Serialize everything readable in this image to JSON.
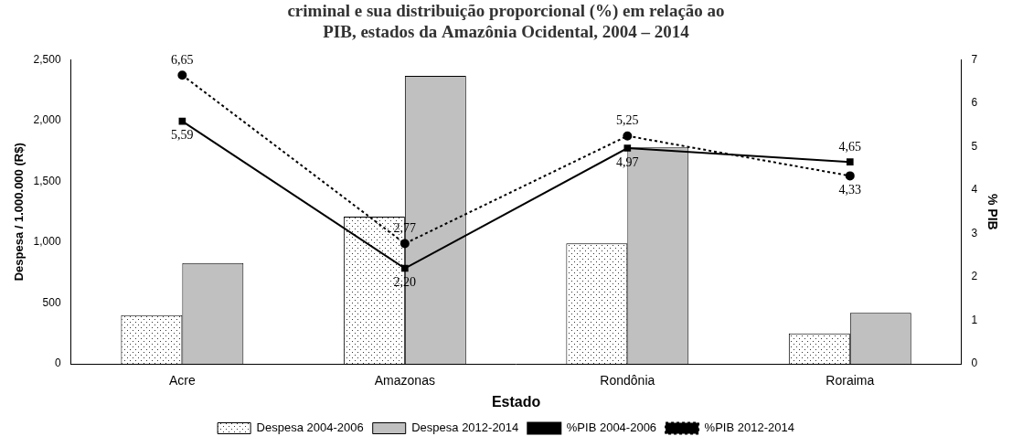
{
  "chart_data": {
    "type": "bar",
    "title": [
      "criminal e sua distribuição proporcional (%) em relação ao",
      "PIB, estados da Amazônia Ocidental, 2004 – 2014"
    ],
    "x_label": "Estado",
    "y_label": "Despesa / 1.000.000 (R$)",
    "y2_label": "% PIB",
    "categories": [
      "Acre",
      "Amazonas",
      "Rondônia",
      "Roraima"
    ],
    "series": [
      {
        "name": "Despesa 2004-2006",
        "type": "bar",
        "color": "#ffffff",
        "line_style": "dotted",
        "values": [
          400,
          1210,
          990,
          250
        ]
      },
      {
        "name": "Despesa 2012-2014",
        "type": "bar",
        "color": "#c0c0c0",
        "values": [
          830,
          2370,
          1780,
          420
        ]
      },
      {
        "name": "%PIB 2004-2006",
        "type": "line",
        "axis": "y2",
        "color": "#000000",
        "marker": "square",
        "line_style": "solid",
        "data_labels": true,
        "values": [
          5.59,
          2.2,
          4.97,
          4.65
        ],
        "value_labels": [
          "5,59",
          "2,20",
          "4,97",
          "4,65"
        ]
      },
      {
        "name": "%PIB 2012-2014",
        "type": "line",
        "axis": "y2",
        "color": "#000000",
        "marker": "circle",
        "line_style": "dotted",
        "data_labels": true,
        "values": [
          6.65,
          2.77,
          5.25,
          4.33
        ],
        "value_labels": [
          "6,65",
          "2,77",
          "5,25",
          "4,33"
        ]
      }
    ],
    "ylim": [
      0,
      2500
    ],
    "yticks": [
      0,
      500,
      1000,
      1500,
      2000,
      2500
    ],
    "y2lim": [
      0,
      7
    ],
    "y2ticks": [
      0,
      1,
      2,
      3,
      4,
      5,
      6,
      7
    ],
    "legend": "bottom",
    "grid": false
  }
}
